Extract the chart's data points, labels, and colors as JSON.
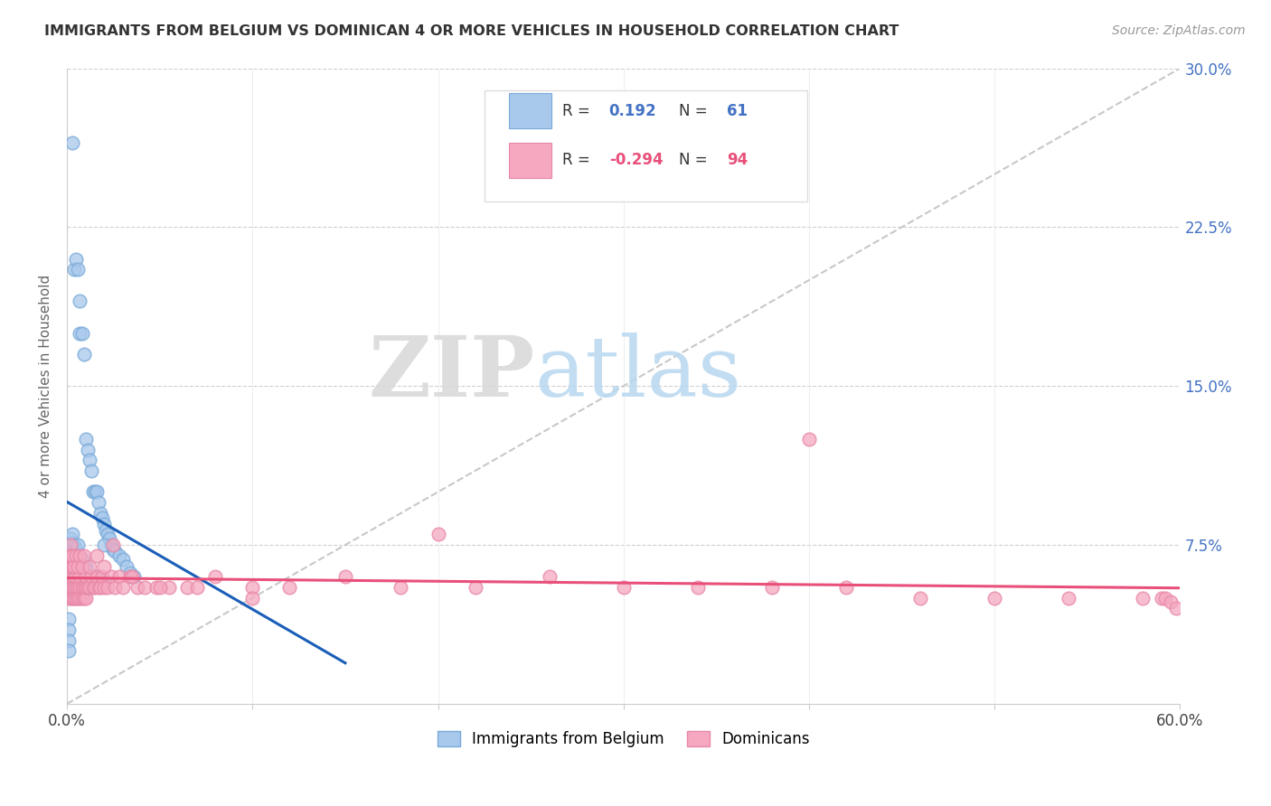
{
  "title": "IMMIGRANTS FROM BELGIUM VS DOMINICAN 4 OR MORE VEHICLES IN HOUSEHOLD CORRELATION CHART",
  "source": "Source: ZipAtlas.com",
  "ylabel": "4 or more Vehicles in Household",
  "xlim": [
    0.0,
    0.6
  ],
  "ylim": [
    0.0,
    0.3
  ],
  "belgium_R": 0.192,
  "belgium_N": 61,
  "dominican_R": -0.294,
  "dominican_N": 94,
  "belgium_color": "#a8c8ec",
  "dominican_color": "#f5a8c0",
  "belgium_line_color": "#1a5eb8",
  "dominican_line_color": "#e8507a",
  "legend_label_belgium": "Immigrants from Belgium",
  "legend_label_dominican": "Dominicans",
  "watermark_zip": "ZIP",
  "watermark_atlas": "atlas",
  "belgium_x": [
    0.003,
    0.004,
    0.005,
    0.006,
    0.007,
    0.007,
    0.008,
    0.009,
    0.01,
    0.011,
    0.012,
    0.013,
    0.014,
    0.015,
    0.016,
    0.017,
    0.018,
    0.019,
    0.02,
    0.021,
    0.022,
    0.023,
    0.024,
    0.025,
    0.026,
    0.028,
    0.03,
    0.032,
    0.034,
    0.036,
    0.001,
    0.001,
    0.001,
    0.002,
    0.002,
    0.002,
    0.002,
    0.002,
    0.002,
    0.003,
    0.003,
    0.003,
    0.003,
    0.004,
    0.004,
    0.004,
    0.005,
    0.005,
    0.006,
    0.006,
    0.007,
    0.008,
    0.009,
    0.01,
    0.015,
    0.02,
    0.001,
    0.001,
    0.001,
    0.001,
    0.02
  ],
  "belgium_y": [
    0.265,
    0.205,
    0.21,
    0.205,
    0.19,
    0.175,
    0.175,
    0.165,
    0.125,
    0.12,
    0.115,
    0.11,
    0.1,
    0.1,
    0.1,
    0.095,
    0.09,
    0.088,
    0.085,
    0.082,
    0.08,
    0.078,
    0.075,
    0.073,
    0.072,
    0.07,
    0.068,
    0.065,
    0.062,
    0.06,
    0.055,
    0.06,
    0.065,
    0.058,
    0.062,
    0.067,
    0.07,
    0.075,
    0.078,
    0.068,
    0.072,
    0.076,
    0.08,
    0.065,
    0.07,
    0.075,
    0.068,
    0.073,
    0.07,
    0.075,
    0.07,
    0.068,
    0.065,
    0.065,
    0.06,
    0.058,
    0.04,
    0.035,
    0.03,
    0.025,
    0.075
  ],
  "dominican_x": [
    0.001,
    0.001,
    0.001,
    0.001,
    0.002,
    0.002,
    0.002,
    0.002,
    0.002,
    0.003,
    0.003,
    0.003,
    0.003,
    0.004,
    0.004,
    0.004,
    0.005,
    0.005,
    0.005,
    0.006,
    0.006,
    0.006,
    0.007,
    0.007,
    0.007,
    0.008,
    0.008,
    0.009,
    0.009,
    0.01,
    0.01,
    0.01,
    0.011,
    0.012,
    0.013,
    0.014,
    0.015,
    0.016,
    0.017,
    0.018,
    0.019,
    0.02,
    0.022,
    0.024,
    0.026,
    0.028,
    0.03,
    0.034,
    0.038,
    0.042,
    0.048,
    0.055,
    0.065,
    0.08,
    0.1,
    0.12,
    0.15,
    0.18,
    0.22,
    0.26,
    0.3,
    0.34,
    0.38,
    0.42,
    0.46,
    0.5,
    0.54,
    0.58,
    0.59,
    0.592,
    0.595,
    0.598,
    0.001,
    0.001,
    0.002,
    0.002,
    0.003,
    0.003,
    0.004,
    0.005,
    0.006,
    0.007,
    0.008,
    0.009,
    0.012,
    0.016,
    0.02,
    0.025,
    0.035,
    0.05,
    0.07,
    0.1,
    0.2,
    0.4
  ],
  "dominican_y": [
    0.05,
    0.055,
    0.06,
    0.065,
    0.05,
    0.055,
    0.06,
    0.065,
    0.07,
    0.05,
    0.055,
    0.06,
    0.065,
    0.05,
    0.055,
    0.06,
    0.05,
    0.055,
    0.06,
    0.05,
    0.055,
    0.065,
    0.05,
    0.055,
    0.06,
    0.05,
    0.055,
    0.05,
    0.055,
    0.05,
    0.055,
    0.06,
    0.055,
    0.055,
    0.06,
    0.055,
    0.055,
    0.06,
    0.055,
    0.055,
    0.06,
    0.055,
    0.055,
    0.06,
    0.055,
    0.06,
    0.055,
    0.06,
    0.055,
    0.055,
    0.055,
    0.055,
    0.055,
    0.06,
    0.055,
    0.055,
    0.06,
    0.055,
    0.055,
    0.06,
    0.055,
    0.055,
    0.055,
    0.055,
    0.05,
    0.05,
    0.05,
    0.05,
    0.05,
    0.05,
    0.048,
    0.045,
    0.07,
    0.065,
    0.075,
    0.07,
    0.065,
    0.07,
    0.065,
    0.07,
    0.065,
    0.07,
    0.065,
    0.07,
    0.065,
    0.07,
    0.065,
    0.075,
    0.06,
    0.055,
    0.055,
    0.05,
    0.08,
    0.125
  ]
}
